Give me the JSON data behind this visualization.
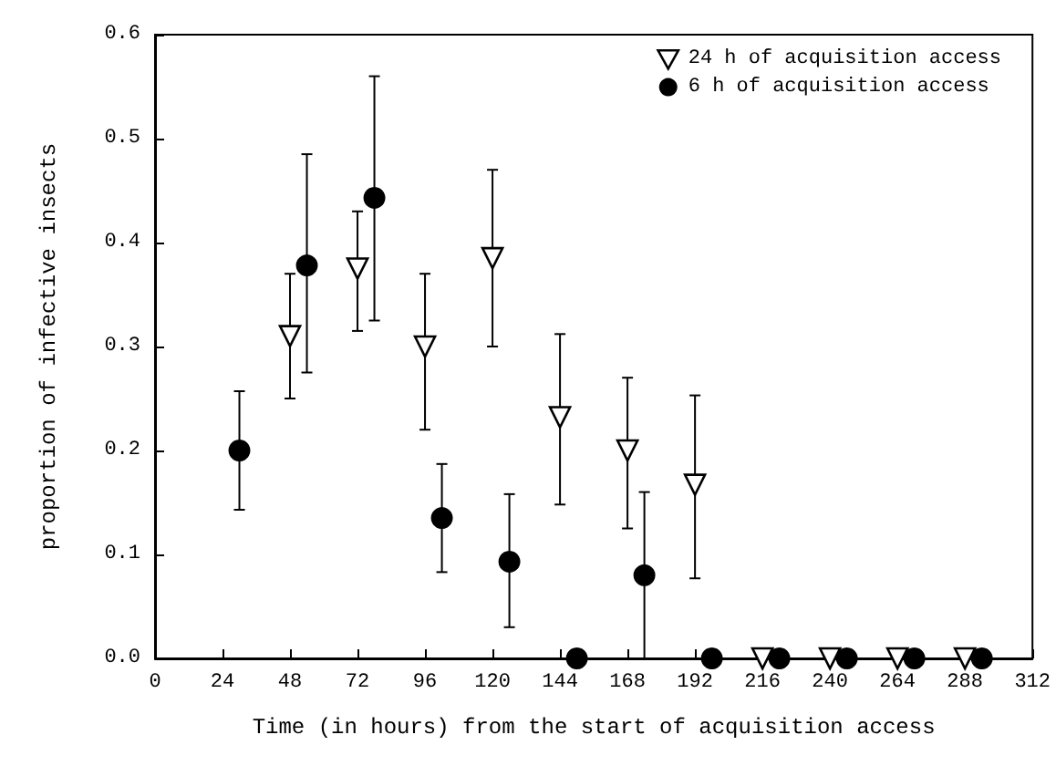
{
  "chart_data": {
    "type": "scatter",
    "xlabel": "Time (in hours) from the start of acquisition access",
    "ylabel": "proportion of infective insects",
    "xlim": [
      0,
      312
    ],
    "xticks": [
      0,
      24,
      48,
      72,
      96,
      120,
      144,
      168,
      192,
      216,
      240,
      264,
      288,
      312
    ],
    "ylim": [
      0,
      0.6
    ],
    "yticks": [
      {
        "value": 0,
        "label": "0.0"
      },
      0.1,
      0.2,
      0.3,
      0.4,
      0.5,
      0.6
    ],
    "grid": false,
    "legend": "top right",
    "series": [
      {
        "name": "24 h of acquisition access",
        "color": "#000000",
        "marker": "triangle",
        "x": [
          48,
          72,
          96,
          120,
          144,
          168,
          192,
          216,
          240,
          264,
          288
        ],
        "values": [
          0.31,
          0.375,
          0.3,
          0.385,
          0.232,
          0.2,
          0.167,
          0,
          0,
          0,
          0
        ],
        "errors": [
          [
            0.25,
            0.37
          ],
          [
            0.315,
            0.43
          ],
          [
            0.22,
            0.37
          ],
          [
            0.3,
            0.47
          ],
          [
            0.148,
            0.312
          ],
          [
            0.125,
            0.27
          ],
          [
            0.077,
            0.253
          ],
          null,
          null,
          null,
          null
        ]
      },
      {
        "name": "6 h of acquisition access",
        "color": "#000000",
        "marker": "circle",
        "x": [
          30,
          54,
          78,
          102,
          126,
          150,
          174,
          198,
          222,
          246,
          270,
          294
        ],
        "values": [
          0.2,
          0.378,
          0.443,
          0.135,
          0.093,
          0,
          0.08,
          0,
          0,
          0,
          0,
          0
        ],
        "errors": [
          [
            0.143,
            0.257
          ],
          [
            0.275,
            0.485
          ],
          [
            0.325,
            0.56
          ],
          [
            0.083,
            0.187
          ],
          [
            0.03,
            0.158
          ],
          null,
          [
            0,
            0.16
          ],
          null,
          null,
          null,
          null,
          null
        ]
      }
    ]
  }
}
